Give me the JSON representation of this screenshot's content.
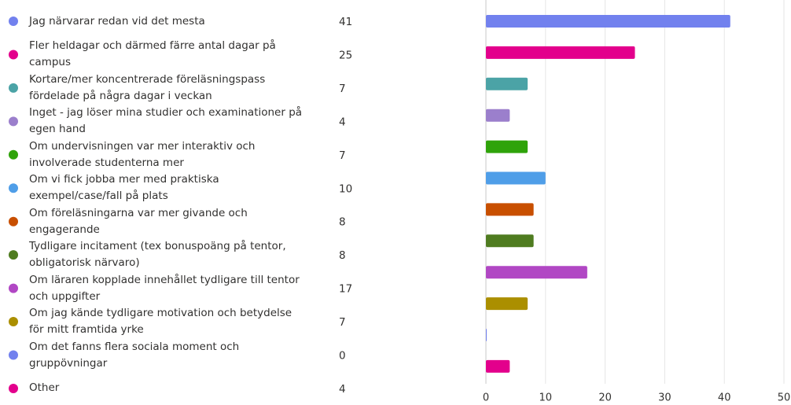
{
  "chart_data": {
    "type": "bar",
    "orientation": "horizontal",
    "categories": [
      "Jag närvarar redan vid det mesta",
      "Fler heldagar och därmed färre antal dagar på campus",
      "Kortare/mer koncentrerade föreläsningspass fördelade på några dagar i veckan",
      "Inget - jag löser mina studier och examinationer på egen hand",
      "Om undervisningen var mer interaktiv och involverade studenterna mer",
      "Om vi fick jobba mer med praktiska exempel/case/fall på plats",
      "Om föreläsningarna var mer givande och engagerande",
      "Tydligare incitament (tex bonuspoäng på tentor, obligatorisk närvaro)",
      "Om läraren kopplade innehållet tydligare till tentor och uppgifter",
      "Om jag kände tydligare motivation och betydelse för mitt framtida yrke",
      "Om det fanns flera sociala moment och gruppövningar",
      "Other"
    ],
    "values": [
      41,
      25,
      7,
      4,
      7,
      10,
      8,
      8,
      17,
      7,
      0,
      4
    ],
    "colors": [
      "#7281ee",
      "#e3008c",
      "#4ba3a6",
      "#9b7fcc",
      "#2fa30a",
      "#4f9ee8",
      "#c84f00",
      "#4f7c20",
      "#b147c4",
      "#ab8f00",
      "#7281ee",
      "#e3008c"
    ],
    "xlim": [
      0,
      50
    ],
    "xticks": [
      0,
      10,
      20,
      30,
      40,
      50
    ],
    "grid": true
  }
}
